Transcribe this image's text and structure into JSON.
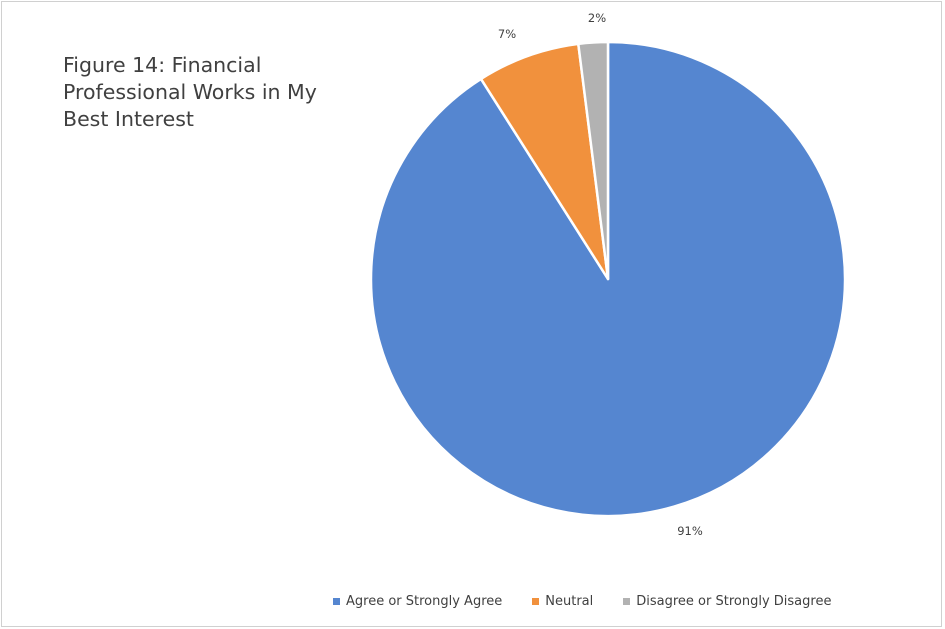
{
  "chart_data": {
    "type": "pie",
    "title_lines": [
      "Figure 14: Financial",
      "Professional Works in My",
      "Best Interest"
    ],
    "categories": [
      "Agree or Strongly Agree",
      "Neutral",
      "Disagree or Strongly Disagree"
    ],
    "values": [
      91,
      7,
      2
    ],
    "labels": [
      "91%",
      "7%",
      "2%"
    ],
    "colors": [
      "#5586d0",
      "#f1913d",
      "#b2b2b2"
    ],
    "legend_position": "bottom"
  }
}
